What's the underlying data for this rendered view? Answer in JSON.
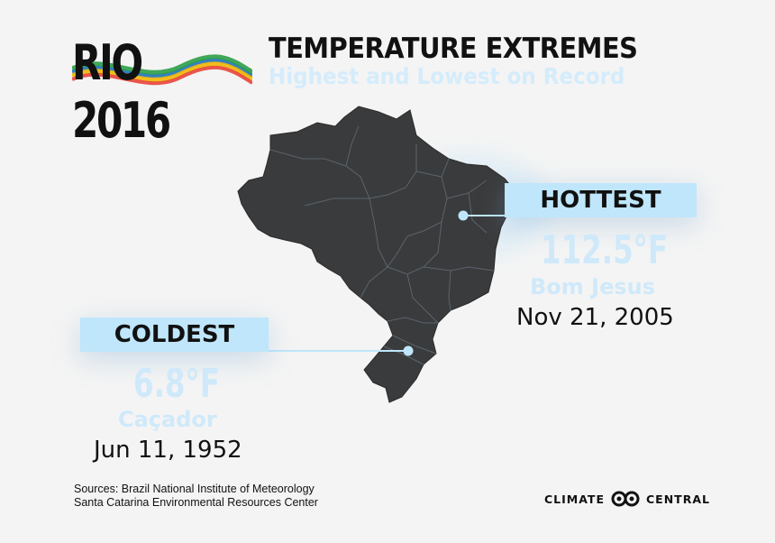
{
  "header": {
    "logo_text": "RIO 2016",
    "title": "TEMPERATURE EXTREMES",
    "subtitle": "Highest and Lowest on Record"
  },
  "hottest": {
    "label": "HOTTEST",
    "temperature": "112.5°F",
    "place": "Bom Jesus",
    "date": "Nov 21, 2005"
  },
  "coldest": {
    "label": "COLDEST",
    "temperature": "6.8°F",
    "place": "Caçador",
    "date": "Jun 11, 1952"
  },
  "sources": {
    "line1": "Sources: Brazil National Institute of Meteorology",
    "line2": "Santa Catarina Environmental Resources Center"
  },
  "brand": {
    "left": "CLIMATE",
    "right": "CENTRAL"
  },
  "colors": {
    "map_fill": "#3a3b3c",
    "state_border": "#5a646e",
    "accent": "#bfe6fb",
    "highlight_text": "#cfe9fa"
  }
}
